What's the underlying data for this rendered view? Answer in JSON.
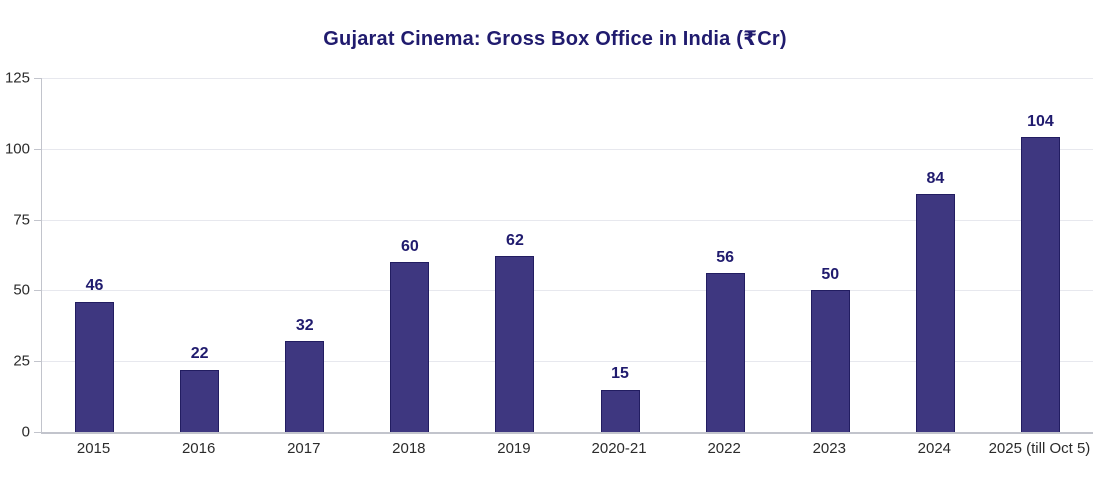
{
  "title": "Gujarat Cinema: Gross Box Office in India (₹Cr)",
  "chart_data": {
    "type": "bar",
    "title": "Gujarat Cinema: Gross Box Office in India (₹Cr)",
    "categories": [
      "2015",
      "2016",
      "2017",
      "2018",
      "2019",
      "2020-21",
      "2022",
      "2023",
      "2024",
      "2025 (till Oct 5)"
    ],
    "values": [
      46,
      22,
      32,
      60,
      62,
      15,
      56,
      50,
      84,
      104
    ],
    "xlabel": "",
    "ylabel": "",
    "ylim": [
      0,
      125
    ],
    "yticks": [
      0,
      25,
      50,
      75,
      100,
      125
    ],
    "grid": true,
    "legend": false,
    "value_labels_shown": true,
    "colors": {
      "bar_fill": "#3e3780",
      "bar_border": "#221d61",
      "title": "#201b6e",
      "value_label": "#201b6e",
      "tick_label": "#2b2b2b",
      "gridline": "#e7e8ee",
      "axis_line": "#c2c4cc",
      "background": "#ffffff"
    }
  }
}
